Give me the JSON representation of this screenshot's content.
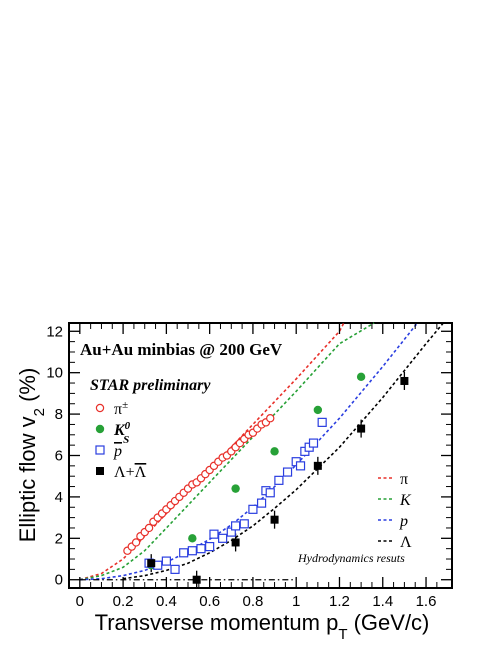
{
  "chart_data": {
    "type": "scatter",
    "title": "",
    "xlabel": "Transverse momentum p",
    "xlabel_sub": "T",
    "xlabel_unit": " (GeV/c)",
    "ylabel": "Elliptic flow v",
    "ylabel_sub": "2",
    "ylabel_unit": " (%)",
    "xlim": [
      -0.05,
      1.72
    ],
    "ylim": [
      -0.4,
      12.4
    ],
    "xticks": [
      0,
      0.2,
      0.4,
      0.6,
      0.8,
      1,
      1.2,
      1.4,
      1.6
    ],
    "xtick_labels": [
      "0",
      "0.2",
      "0.4",
      "0.6",
      "0.8",
      "1",
      "1.2",
      "1.4",
      "1.6"
    ],
    "yticks": [
      0,
      2,
      4,
      6,
      8,
      10,
      12
    ],
    "ytick_labels": [
      "0",
      "2",
      "4",
      "6",
      "8",
      "10",
      "12"
    ],
    "annotations": {
      "system": "Au+Au minbias @ 200 GeV",
      "collab": "STAR preliminary",
      "hydro_note": "Hydrodynamics resuts"
    },
    "marker_legend": [
      {
        "symbol": "open-circle",
        "color": "#e8302a",
        "label": "π",
        "sup": "±"
      },
      {
        "symbol": "filled-circle",
        "color": "#27a137",
        "label": "K",
        "sup": "0",
        "sub": "S"
      },
      {
        "symbol": "open-square",
        "color": "#2a3ee0",
        "label": "p",
        "overline": true
      },
      {
        "symbol": "filled-square",
        "color": "#000000",
        "label": "Λ+",
        "label2": "Λ",
        "overline2": true
      }
    ],
    "line_legend": [
      {
        "label": "π",
        "color": "#e8302a"
      },
      {
        "label": "K",
        "color": "#27a137"
      },
      {
        "label": "p",
        "color": "#2a3ee0"
      },
      {
        "label": "Λ",
        "color": "#000000"
      }
    ],
    "series": [
      {
        "name": "π±",
        "marker": "open-circle",
        "color": "#e8302a",
        "points": [
          [
            0.22,
            1.4
          ],
          [
            0.24,
            1.6
          ],
          [
            0.26,
            1.8
          ],
          [
            0.28,
            2.1
          ],
          [
            0.3,
            2.3
          ],
          [
            0.32,
            2.5
          ],
          [
            0.34,
            2.8
          ],
          [
            0.36,
            3.0
          ],
          [
            0.38,
            3.2
          ],
          [
            0.4,
            3.4
          ],
          [
            0.42,
            3.6
          ],
          [
            0.44,
            3.8
          ],
          [
            0.46,
            4.0
          ],
          [
            0.48,
            4.2
          ],
          [
            0.5,
            4.4
          ],
          [
            0.52,
            4.6
          ],
          [
            0.54,
            4.7
          ],
          [
            0.56,
            4.9
          ],
          [
            0.58,
            5.1
          ],
          [
            0.6,
            5.3
          ],
          [
            0.62,
            5.5
          ],
          [
            0.64,
            5.7
          ],
          [
            0.66,
            5.9
          ],
          [
            0.68,
            6.0
          ],
          [
            0.7,
            6.2
          ],
          [
            0.72,
            6.4
          ],
          [
            0.74,
            6.6
          ],
          [
            0.76,
            6.8
          ],
          [
            0.78,
            7.0
          ],
          [
            0.8,
            7.1
          ],
          [
            0.82,
            7.3
          ],
          [
            0.84,
            7.5
          ],
          [
            0.86,
            7.6
          ],
          [
            0.88,
            7.8
          ]
        ]
      },
      {
        "name": "K0S",
        "marker": "filled-circle",
        "color": "#27a137",
        "points": [
          [
            0.33,
            0.7
          ],
          [
            0.52,
            2.0
          ],
          [
            0.72,
            4.4
          ],
          [
            0.9,
            6.2
          ],
          [
            1.1,
            8.2
          ],
          [
            1.3,
            9.8
          ]
        ]
      },
      {
        "name": "p̄",
        "marker": "open-square",
        "color": "#2a3ee0",
        "points": [
          [
            0.32,
            0.8
          ],
          [
            0.36,
            0.7
          ],
          [
            0.4,
            0.9
          ],
          [
            0.44,
            0.5
          ],
          [
            0.48,
            1.3
          ],
          [
            0.52,
            1.4
          ],
          [
            0.56,
            1.5
          ],
          [
            0.6,
            1.6
          ],
          [
            0.62,
            2.2
          ],
          [
            0.66,
            2.0
          ],
          [
            0.7,
            2.3
          ],
          [
            0.72,
            2.6
          ],
          [
            0.76,
            2.7
          ],
          [
            0.8,
            3.4
          ],
          [
            0.84,
            3.7
          ],
          [
            0.86,
            4.3
          ],
          [
            0.88,
            4.2
          ],
          [
            0.92,
            4.8
          ],
          [
            0.96,
            5.2
          ],
          [
            1.0,
            5.7
          ],
          [
            1.02,
            5.5
          ],
          [
            1.04,
            6.2
          ],
          [
            1.06,
            6.4
          ],
          [
            1.08,
            6.6
          ],
          [
            1.12,
            7.6
          ]
        ]
      },
      {
        "name": "Λ+Λ̄",
        "marker": "filled-square",
        "color": "#000000",
        "points": [
          [
            0.33,
            0.8
          ],
          [
            0.54,
            0.0
          ],
          [
            0.72,
            1.8
          ],
          [
            0.9,
            2.9
          ],
          [
            1.1,
            5.5
          ],
          [
            1.3,
            7.3
          ],
          [
            1.5,
            9.6
          ]
        ]
      }
    ],
    "hydro_curves": [
      {
        "name": "π",
        "color": "#e8302a",
        "points": [
          [
            0.0,
            0.0
          ],
          [
            0.1,
            0.3
          ],
          [
            0.2,
            1.0
          ],
          [
            0.3,
            2.1
          ],
          [
            0.4,
            3.2
          ],
          [
            0.5,
            4.3
          ],
          [
            0.6,
            5.3
          ],
          [
            0.8,
            7.5
          ],
          [
            1.0,
            9.7
          ],
          [
            1.2,
            12.0
          ],
          [
            1.22,
            12.4
          ]
        ]
      },
      {
        "name": "K",
        "color": "#27a137",
        "points": [
          [
            0.0,
            0.0
          ],
          [
            0.1,
            0.2
          ],
          [
            0.2,
            0.6
          ],
          [
            0.3,
            1.4
          ],
          [
            0.4,
            2.5
          ],
          [
            0.5,
            3.6
          ],
          [
            0.6,
            4.7
          ],
          [
            0.8,
            6.9
          ],
          [
            1.0,
            9.1
          ],
          [
            1.2,
            11.4
          ],
          [
            1.36,
            12.4
          ]
        ]
      },
      {
        "name": "p",
        "color": "#2a3ee0",
        "points": [
          [
            0.0,
            0.0
          ],
          [
            0.1,
            0.05
          ],
          [
            0.2,
            0.2
          ],
          [
            0.3,
            0.45
          ],
          [
            0.4,
            0.85
          ],
          [
            0.5,
            1.35
          ],
          [
            0.6,
            1.95
          ],
          [
            0.7,
            2.65
          ],
          [
            0.8,
            3.5
          ],
          [
            0.9,
            4.5
          ],
          [
            1.0,
            5.55
          ],
          [
            1.2,
            7.8
          ],
          [
            1.4,
            10.3
          ],
          [
            1.56,
            12.4
          ]
        ]
      },
      {
        "name": "Λ",
        "color": "#000000",
        "points": [
          [
            0.2,
            0.05
          ],
          [
            0.3,
            0.2
          ],
          [
            0.4,
            0.45
          ],
          [
            0.5,
            0.8
          ],
          [
            0.6,
            1.3
          ],
          [
            0.7,
            1.9
          ],
          [
            0.8,
            2.6
          ],
          [
            0.9,
            3.45
          ],
          [
            1.0,
            4.35
          ],
          [
            1.2,
            6.4
          ],
          [
            1.4,
            8.8
          ],
          [
            1.6,
            11.4
          ],
          [
            1.68,
            12.4
          ]
        ]
      }
    ],
    "baseline": {
      "x_from": 0.0,
      "x_to": 1.0,
      "y": 0.0,
      "style": "dash-dot"
    },
    "legend_position": "left (markers), bottom-right (lines)",
    "grid": false
  }
}
